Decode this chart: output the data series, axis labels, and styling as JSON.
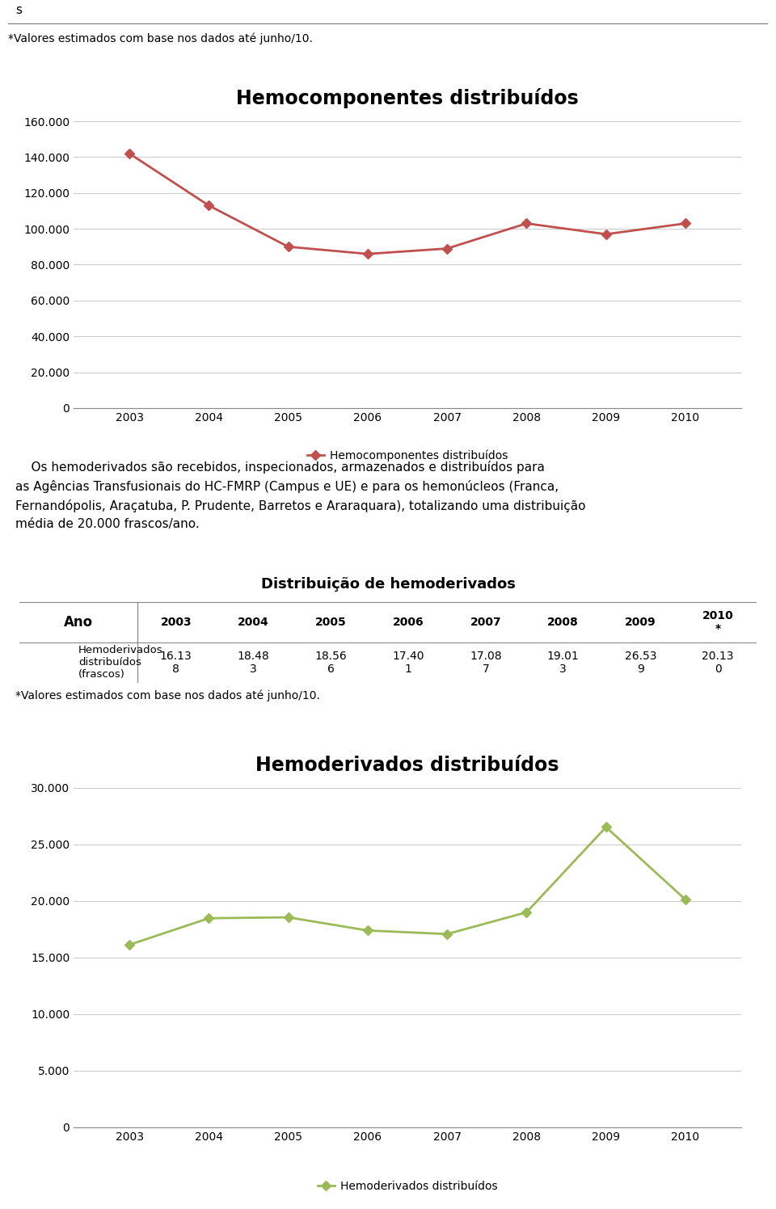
{
  "chart1_title": "Hemocomponentes distribuídos",
  "chart1_years": [
    2003,
    2004,
    2005,
    2006,
    2007,
    2008,
    2009,
    2010
  ],
  "chart1_values": [
    142000,
    113000,
    90000,
    86000,
    89000,
    103000,
    97000,
    103000
  ],
  "chart1_color": "#C0504D",
  "chart1_legend": "Hemocomponentes distribuídos",
  "chart1_ylim": [
    0,
    160000
  ],
  "chart1_yticks": [
    0,
    20000,
    40000,
    60000,
    80000,
    100000,
    120000,
    140000,
    160000
  ],
  "table_title": "Distribuição de hemoderivados",
  "table_years": [
    "2003",
    "2004",
    "2005",
    "2006",
    "2007",
    "2008",
    "2009",
    "2010\n*"
  ],
  "table_row_label": "Hemoderivados\ndistribuídos\n(frascos)",
  "table_values": [
    "16.13\n8",
    "18.48\n3",
    "18.56\n6",
    "17.40\n1",
    "17.08\n7",
    "19.01\n3",
    "26.53\n9",
    "20.13\n0"
  ],
  "paragraph": "    Os hemoderivados são recebidos, inspecionados, armazenados e distribuídos para\nas Agências Transfusionais do HC-FMRP (Campus e UE) e para os hemonúcleos (Franca,\nFernandópolis, Araçatuba, P. Prudente, Barretos e Araraquara), totalizando uma distribuição\nmédia de 20.000 frascos/ano.",
  "footnote": "*Valores estimados com base nos dados até junho/10.",
  "header_s": "s",
  "header_footnote": "*Valores estimados com base nos dados até junho/10.",
  "chart2_title": "Hemoderivados distribuídos",
  "chart2_years": [
    2003,
    2004,
    2005,
    2006,
    2007,
    2008,
    2009,
    2010
  ],
  "chart2_values": [
    16138,
    18483,
    18566,
    17401,
    17087,
    19013,
    26539,
    20130
  ],
  "chart2_color": "#9BBB59",
  "chart2_legend": "Hemoderivados distribuídos",
  "chart2_ylim": [
    0,
    30000
  ],
  "chart2_yticks": [
    0,
    5000,
    10000,
    15000,
    20000,
    25000,
    30000
  ],
  "bg_color": "#FFFFFF",
  "chart_bg": "#FFFFFF",
  "grid_color": "#CCCCCC",
  "box_border_color": "#AAAAAA"
}
